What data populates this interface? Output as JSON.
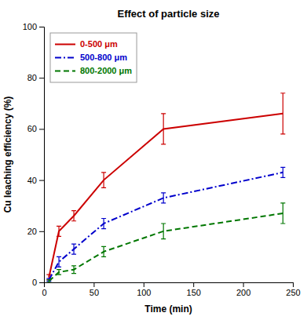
{
  "chart_data": {
    "type": "line",
    "title": "Effect of particle size",
    "xlabel": "Time (min)",
    "ylabel": "Cu leaching efficiency (%)",
    "x": [
      5,
      15,
      30,
      60,
      120,
      240
    ],
    "xlim": [
      0,
      250
    ],
    "ylim": [
      0,
      100
    ],
    "xticks": [
      0,
      50,
      100,
      150,
      200,
      250
    ],
    "yticks": [
      0,
      20,
      40,
      60,
      80,
      100
    ],
    "grid": false,
    "legend": "upper left",
    "series": [
      {
        "name": "0-500 μm",
        "color": "#cc0000",
        "line_style": "solid",
        "values": [
          2,
          20,
          26,
          40,
          60,
          66
        ],
        "errors": [
          1,
          2,
          2,
          3,
          6,
          8
        ]
      },
      {
        "name": "500-800 μm",
        "color": "#0000cc",
        "line_style": "dashdot",
        "values": [
          1,
          8,
          13,
          23,
          33,
          43
        ],
        "errors": [
          0.5,
          2,
          2,
          2,
          2,
          2
        ]
      },
      {
        "name": "800-2000 μm",
        "color": "#007700",
        "line_style": "dashed",
        "values": [
          0.5,
          4,
          5,
          12,
          20,
          27
        ],
        "errors": [
          0.5,
          1,
          1.5,
          2,
          3,
          4
        ]
      }
    ]
  }
}
